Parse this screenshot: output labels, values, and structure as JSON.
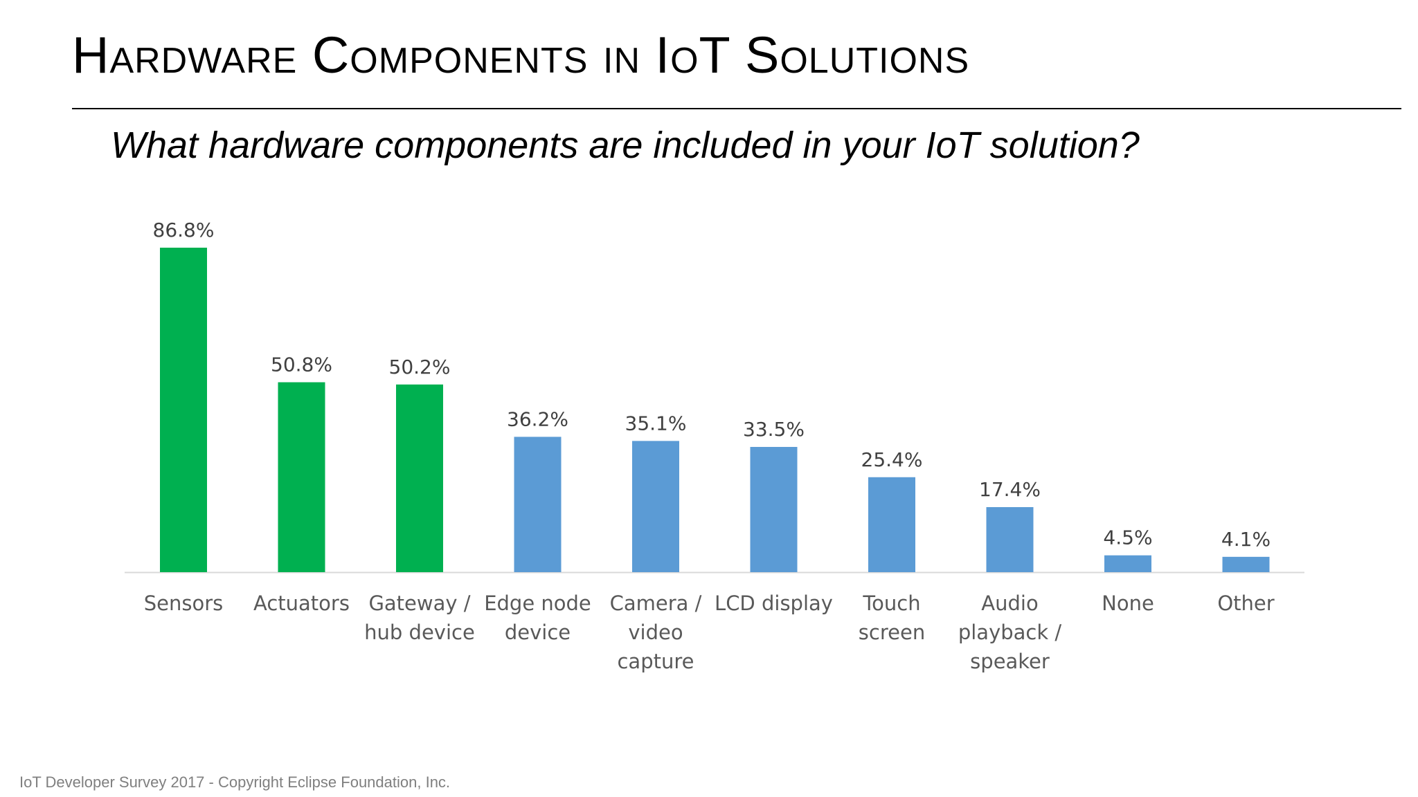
{
  "slide": {
    "title": "Hardware Components in IoT Solutions",
    "subtitle": "What hardware components are included in your IoT solution?",
    "footer": "IoT Developer Survey 2017 - Copyright Eclipse Foundation, Inc."
  },
  "chart_data": {
    "type": "bar",
    "categories": [
      [
        "Sensors"
      ],
      [
        "Actuators"
      ],
      [
        "Gateway /",
        "hub device"
      ],
      [
        "Edge node",
        "device"
      ],
      [
        "Camera /",
        "video",
        "capture"
      ],
      [
        "LCD display"
      ],
      [
        "Touch",
        "screen"
      ],
      [
        "Audio",
        "playback /",
        "speaker"
      ],
      [
        "None"
      ],
      [
        "Other"
      ]
    ],
    "values": [
      86.8,
      50.8,
      50.2,
      36.2,
      35.1,
      33.5,
      25.4,
      17.4,
      4.5,
      4.1
    ],
    "data_labels": [
      "86.8%",
      "50.8%",
      "50.2%",
      "36.2%",
      "35.1%",
      "33.5%",
      "25.4%",
      "17.4%",
      "4.5%",
      "4.1%"
    ],
    "bar_colors": [
      "#00b050",
      "#00b050",
      "#00b050",
      "#5b9bd5",
      "#5b9bd5",
      "#5b9bd5",
      "#5b9bd5",
      "#5b9bd5",
      "#5b9bd5",
      "#5b9bd5"
    ],
    "ylim": [
      0,
      86.8
    ],
    "grid": false,
    "legend": "none",
    "colors": {
      "highlight": "#00b050",
      "default": "#5b9bd5",
      "axis": "#d9d9d9",
      "label_text": "#404040",
      "category_text": "#595959"
    }
  }
}
